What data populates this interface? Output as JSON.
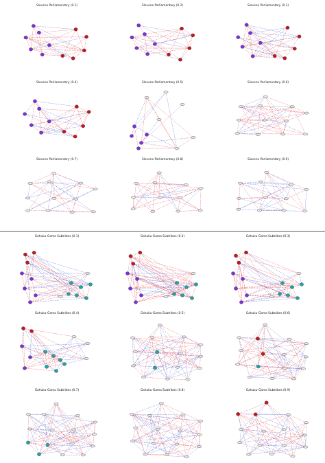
{
  "panels": [
    {
      "title": "Slovene Parliamentary (0.1)",
      "network": "slovene"
    },
    {
      "title": "Slovene Parliamentary (0.2)",
      "network": "slovene"
    },
    {
      "title": "Slovene Parliamentary (0.3)",
      "network": "slovene"
    },
    {
      "title": "Slovene Parliamentary (0.4)",
      "network": "slovene"
    },
    {
      "title": "Slovene Parliamentary (0.5)",
      "network": "slovene"
    },
    {
      "title": "Slovene Parliamentary (0.6)",
      "network": "slovene"
    },
    {
      "title": "Slovene Parliamentary (0.7)",
      "network": "slovene"
    },
    {
      "title": "Slovene Parliamentary (0.8)",
      "network": "slovene"
    },
    {
      "title": "Slovene Parliamentary (0.9)",
      "network": "slovene"
    },
    {
      "title": "Gahuku-Gama Subtribes (0.1)",
      "network": "gahuku"
    },
    {
      "title": "Gahuku-Gama Subtribes (0.2)",
      "network": "gahuku"
    },
    {
      "title": "Gahuku-Gama Subtribes (0.3)",
      "network": "gahuku"
    },
    {
      "title": "Gahuku-Gama Subtribes (0.4)",
      "network": "gahuku"
    },
    {
      "title": "Gahuku-Gama Subtribes (0.5)",
      "network": "gahuku"
    },
    {
      "title": "Gahuku-Gama Subtribes (0.6)",
      "network": "gahuku"
    },
    {
      "title": "Gahuku-Gama Subtribes (0.7)",
      "network": "gahuku"
    },
    {
      "title": "Gahuku-Gama Subtribes (0.8)",
      "network": "gahuku"
    },
    {
      "title": "Gahuku-Gama Subtribes (0.9)",
      "network": "gahuku"
    }
  ],
  "colors": {
    "positive_edge": "#e8383d",
    "negative_edge": "#3a5fd9",
    "group_purple": "#7b2fe0",
    "group_red": "#c8141e",
    "group_teal": "#1aa7a7",
    "neutral_node": "#e8e8e8",
    "node_outline": "#222222"
  }
}
